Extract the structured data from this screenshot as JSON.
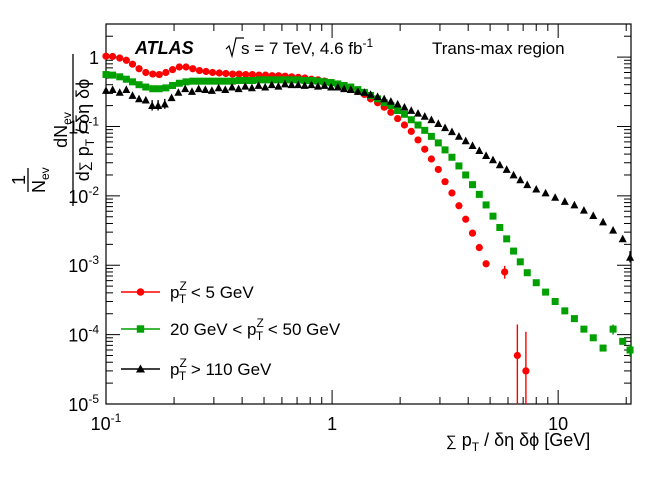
{
  "chart_data": {
    "type": "scatter",
    "x_scale": "log",
    "y_scale": "log",
    "xlim": [
      0.1,
      21
    ],
    "ylim": [
      1e-05,
      3
    ],
    "title": {
      "experiment": "ATLAS",
      "sqrt_s": "s = 7 TeV, 4.6 fb",
      "lumi_exp": "-1",
      "region": "Trans-max region"
    },
    "xlabel": {
      "sum": "∑",
      "p": " p",
      "sub": "T",
      "rest": " / δη δϕ [GeV]"
    },
    "ylabel": {
      "one": "1",
      "nev": "N",
      "nev_sub": "ev",
      "frac_top": "dN",
      "frac_top_sub": "ev",
      "d": "d",
      "sum": "∑",
      "p": " p",
      "p_sub": "T",
      "rest": " / δη δϕ"
    },
    "x_ticks": [
      {
        "value": 0.1,
        "base": "10",
        "exp": "-1"
      },
      {
        "value": 1,
        "base": "1",
        "exp": ""
      },
      {
        "value": 10,
        "base": "10",
        "exp": ""
      }
    ],
    "y_ticks": [
      {
        "value": 1,
        "base": "1",
        "exp": ""
      },
      {
        "value": 0.1,
        "base": "10",
        "exp": "-1"
      },
      {
        "value": 0.01,
        "base": "10",
        "exp": "-2"
      },
      {
        "value": 0.001,
        "base": "10",
        "exp": "-3"
      },
      {
        "value": 0.0001,
        "base": "10",
        "exp": "-4"
      },
      {
        "value": 1e-05,
        "base": "10",
        "exp": "-5"
      }
    ],
    "series": [
      {
        "name": "pT^Z < 5 GeV",
        "legend": {
          "pre": "p",
          "sup": "Z",
          "sub": "T",
          "post": " < 5 GeV"
        },
        "color": "#ff0000",
        "marker": "circle",
        "points": [
          [
            0.1,
            1.03
          ],
          [
            0.107,
            1.02
          ],
          [
            0.115,
            0.97
          ],
          [
            0.123,
            0.9
          ],
          [
            0.131,
            0.79
          ],
          [
            0.14,
            0.68
          ],
          [
            0.15,
            0.6
          ],
          [
            0.161,
            0.57
          ],
          [
            0.172,
            0.56
          ],
          [
            0.184,
            0.6
          ],
          [
            0.197,
            0.66
          ],
          [
            0.211,
            0.72
          ],
          [
            0.226,
            0.72
          ],
          [
            0.242,
            0.68
          ],
          [
            0.259,
            0.64
          ],
          [
            0.277,
            0.62
          ],
          [
            0.296,
            0.6
          ],
          [
            0.317,
            0.59
          ],
          [
            0.339,
            0.58
          ],
          [
            0.363,
            0.57
          ],
          [
            0.388,
            0.57
          ],
          [
            0.415,
            0.56
          ],
          [
            0.444,
            0.56
          ],
          [
            0.475,
            0.55
          ],
          [
            0.508,
            0.55
          ],
          [
            0.543,
            0.54
          ],
          [
            0.58,
            0.54
          ],
          [
            0.62,
            0.53
          ],
          [
            0.663,
            0.52
          ],
          [
            0.709,
            0.51
          ],
          [
            0.758,
            0.5
          ],
          [
            0.81,
            0.48
          ],
          [
            0.866,
            0.47
          ],
          [
            0.926,
            0.45
          ],
          [
            0.99,
            0.43
          ],
          [
            1.06,
            0.41
          ],
          [
            1.13,
            0.38
          ],
          [
            1.21,
            0.35
          ],
          [
            1.3,
            0.32
          ],
          [
            1.39,
            0.29
          ],
          [
            1.48,
            0.25
          ],
          [
            1.59,
            0.22
          ],
          [
            1.7,
            0.19
          ],
          [
            1.82,
            0.16
          ],
          [
            1.95,
            0.13
          ],
          [
            2.09,
            0.105
          ],
          [
            2.24,
            0.085
          ],
          [
            2.4,
            0.064
          ],
          [
            2.57,
            0.047
          ],
          [
            2.75,
            0.034
          ],
          [
            2.95,
            0.024
          ],
          [
            3.16,
            0.016
          ],
          [
            3.39,
            0.011
          ],
          [
            3.64,
            0.0072
          ],
          [
            3.9,
            0.0046
          ],
          [
            4.18,
            0.0029
          ],
          [
            4.48,
            0.0018
          ],
          [
            4.8,
            0.00105
          ],
          [
            5.8,
            0.0008
          ],
          [
            6.6,
            5e-05
          ],
          [
            7.2,
            3e-05
          ]
        ],
        "error_bars": [
          {
            "x": 5.8,
            "low": 0.00064,
            "high": 0.00098
          },
          {
            "x": 6.6,
            "low": 1e-05,
            "high": 0.00014
          },
          {
            "x": 7.2,
            "low": 1e-05,
            "high": 0.00011
          }
        ]
      },
      {
        "name": "20 GeV < pT^Z < 50 GeV",
        "legend": {
          "pre": "20 GeV < p",
          "sup": "Z",
          "sub": "T",
          "post": " < 50 GeV"
        },
        "color": "#00a000",
        "marker": "square",
        "points": [
          [
            0.1,
            0.56
          ],
          [
            0.107,
            0.55
          ],
          [
            0.115,
            0.52
          ],
          [
            0.123,
            0.48
          ],
          [
            0.131,
            0.44
          ],
          [
            0.14,
            0.4
          ],
          [
            0.15,
            0.37
          ],
          [
            0.161,
            0.35
          ],
          [
            0.172,
            0.35
          ],
          [
            0.184,
            0.36
          ],
          [
            0.197,
            0.39
          ],
          [
            0.211,
            0.42
          ],
          [
            0.226,
            0.44
          ],
          [
            0.242,
            0.45
          ],
          [
            0.259,
            0.45
          ],
          [
            0.277,
            0.45
          ],
          [
            0.296,
            0.45
          ],
          [
            0.317,
            0.45
          ],
          [
            0.339,
            0.45
          ],
          [
            0.363,
            0.45
          ],
          [
            0.388,
            0.46
          ],
          [
            0.415,
            0.46
          ],
          [
            0.444,
            0.46
          ],
          [
            0.475,
            0.47
          ],
          [
            0.508,
            0.47
          ],
          [
            0.543,
            0.47
          ],
          [
            0.58,
            0.47
          ],
          [
            0.62,
            0.47
          ],
          [
            0.663,
            0.47
          ],
          [
            0.709,
            0.47
          ],
          [
            0.758,
            0.46
          ],
          [
            0.81,
            0.46
          ],
          [
            0.866,
            0.45
          ],
          [
            0.926,
            0.44
          ],
          [
            0.99,
            0.43
          ],
          [
            1.06,
            0.41
          ],
          [
            1.13,
            0.39
          ],
          [
            1.21,
            0.37
          ],
          [
            1.3,
            0.34
          ],
          [
            1.39,
            0.31
          ],
          [
            1.48,
            0.28
          ],
          [
            1.59,
            0.25
          ],
          [
            1.7,
            0.22
          ],
          [
            1.82,
            0.2
          ],
          [
            1.95,
            0.17
          ],
          [
            2.09,
            0.15
          ],
          [
            2.24,
            0.125
          ],
          [
            2.4,
            0.105
          ],
          [
            2.57,
            0.088
          ],
          [
            2.75,
            0.072
          ],
          [
            2.95,
            0.058
          ],
          [
            3.16,
            0.046
          ],
          [
            3.39,
            0.036
          ],
          [
            3.64,
            0.027
          ],
          [
            3.9,
            0.02
          ],
          [
            4.18,
            0.0145
          ],
          [
            4.48,
            0.0105
          ],
          [
            4.8,
            0.0074
          ],
          [
            5.15,
            0.0051
          ],
          [
            5.52,
            0.0035
          ],
          [
            5.92,
            0.0024
          ],
          [
            6.35,
            0.0016
          ],
          [
            6.8,
            0.00112
          ],
          [
            7.3,
            0.00078
          ],
          [
            8.0,
            0.00056
          ],
          [
            8.8,
            0.00041
          ],
          [
            9.7,
            0.0003
          ],
          [
            10.7,
            0.00022
          ],
          [
            11.8,
            0.00017
          ],
          [
            13.0,
            0.00012
          ],
          [
            14.3,
            9e-05
          ],
          [
            15.8,
            6.4e-05
          ],
          [
            17.5,
            0.00012
          ],
          [
            19.3,
            8e-05
          ],
          [
            20.8,
            6e-05
          ]
        ],
        "error_bars": [
          {
            "x": 17.5,
            "low": 0.0001,
            "high": 0.00014
          },
          {
            "x": 20.8,
            "low": 4.8e-05,
            "high": 7.2e-05
          }
        ]
      },
      {
        "name": "pT^Z > 110 GeV",
        "legend": {
          "pre": "p",
          "sup": "Z",
          "sub": "T",
          "post": " >  110 GeV"
        },
        "color": "#000000",
        "marker": "triangle",
        "points": [
          [
            0.1,
            0.33
          ],
          [
            0.107,
            0.34
          ],
          [
            0.115,
            0.31
          ],
          [
            0.123,
            0.34
          ],
          [
            0.131,
            0.28
          ],
          [
            0.14,
            0.25
          ],
          [
            0.15,
            0.24
          ],
          [
            0.16,
            0.2
          ],
          [
            0.17,
            0.2
          ],
          [
            0.182,
            0.21
          ],
          [
            0.195,
            0.26
          ],
          [
            0.209,
            0.31
          ],
          [
            0.224,
            0.35
          ],
          [
            0.24,
            0.32
          ],
          [
            0.257,
            0.35
          ],
          [
            0.275,
            0.34
          ],
          [
            0.294,
            0.33
          ],
          [
            0.315,
            0.36
          ],
          [
            0.337,
            0.34
          ],
          [
            0.361,
            0.37
          ],
          [
            0.386,
            0.35
          ],
          [
            0.413,
            0.38
          ],
          [
            0.442,
            0.36
          ],
          [
            0.473,
            0.39
          ],
          [
            0.506,
            0.37
          ],
          [
            0.541,
            0.4
          ],
          [
            0.579,
            0.38
          ],
          [
            0.619,
            0.41
          ],
          [
            0.662,
            0.4
          ],
          [
            0.708,
            0.4
          ],
          [
            0.757,
            0.39
          ],
          [
            0.81,
            0.4
          ],
          [
            0.866,
            0.38
          ],
          [
            0.926,
            0.39
          ],
          [
            0.99,
            0.37
          ],
          [
            1.06,
            0.37
          ],
          [
            1.13,
            0.35
          ],
          [
            1.21,
            0.34
          ],
          [
            1.3,
            0.32
          ],
          [
            1.39,
            0.31
          ],
          [
            1.48,
            0.29
          ],
          [
            1.59,
            0.27
          ],
          [
            1.7,
            0.25
          ],
          [
            1.82,
            0.23
          ],
          [
            1.95,
            0.21
          ],
          [
            2.09,
            0.19
          ],
          [
            2.24,
            0.17
          ],
          [
            2.4,
            0.155
          ],
          [
            2.57,
            0.14
          ],
          [
            2.75,
            0.125
          ],
          [
            2.95,
            0.11
          ],
          [
            3.16,
            0.096
          ],
          [
            3.39,
            0.084
          ],
          [
            3.64,
            0.072
          ],
          [
            3.9,
            0.062
          ],
          [
            4.18,
            0.053
          ],
          [
            4.48,
            0.045
          ],
          [
            4.8,
            0.038
          ],
          [
            5.15,
            0.033
          ],
          [
            5.52,
            0.028
          ],
          [
            5.92,
            0.024
          ],
          [
            6.35,
            0.02
          ],
          [
            6.8,
            0.017
          ],
          [
            7.3,
            0.0145
          ],
          [
            8.0,
            0.0125
          ],
          [
            8.8,
            0.011
          ],
          [
            9.7,
            0.0095
          ],
          [
            10.7,
            0.0083
          ],
          [
            11.8,
            0.0074
          ],
          [
            13.0,
            0.0062
          ],
          [
            14.3,
            0.0052
          ],
          [
            15.8,
            0.0042
          ],
          [
            17.5,
            0.0032
          ],
          [
            19.3,
            0.0024
          ],
          [
            20.8,
            0.0013
          ]
        ],
        "error_bars": [
          {
            "x": 0.16,
            "low": 0.17,
            "high": 0.24
          },
          {
            "x": 0.17,
            "low": 0.17,
            "high": 0.24
          },
          {
            "x": 0.182,
            "low": 0.18,
            "high": 0.25
          },
          {
            "x": 20.8,
            "low": 0.0011,
            "high": 0.0016
          }
        ]
      }
    ]
  }
}
